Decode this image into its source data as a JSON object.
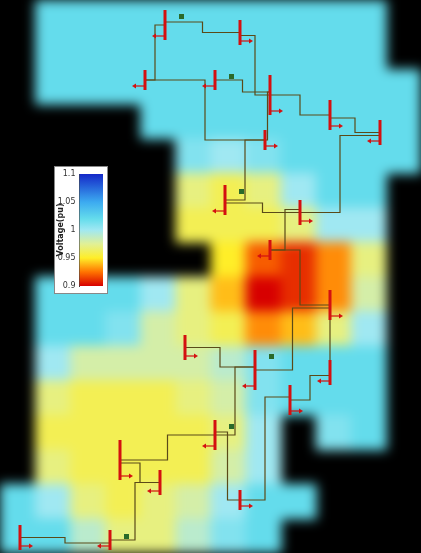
{
  "chart_data": {
    "type": "heatmap",
    "tick_labels": false,
    "cells": [
      [
        null,
        1.02,
        1.02,
        1.02,
        1.02,
        1.02,
        1.02,
        1.02,
        1.02,
        1.02,
        1.02,
        null
      ],
      [
        null,
        1.02,
        1.02,
        1.02,
        1.02,
        1.02,
        1.02,
        1.02,
        1.02,
        1.02,
        1.02,
        null
      ],
      [
        null,
        1.02,
        1.02,
        1.02,
        1.02,
        1.02,
        1.02,
        1.02,
        1.02,
        1.02,
        1.02,
        1.02
      ],
      [
        null,
        null,
        null,
        null,
        1.02,
        1.02,
        1.02,
        1.02,
        1.02,
        1.02,
        1.02,
        1.02
      ],
      [
        null,
        null,
        null,
        null,
        null,
        1.01,
        1.0,
        1.01,
        1.02,
        1.02,
        1.02,
        1.02
      ],
      [
        null,
        null,
        null,
        null,
        null,
        0.97,
        0.96,
        0.97,
        1.0,
        1.02,
        1.02,
        null
      ],
      [
        null,
        null,
        null,
        null,
        null,
        0.96,
        0.96,
        0.96,
        0.97,
        1.0,
        1.0,
        null
      ],
      [
        null,
        null,
        null,
        null,
        null,
        null,
        0.95,
        0.92,
        0.91,
        0.93,
        0.97,
        null
      ],
      [
        null,
        1.02,
        1.02,
        1.02,
        1.0,
        0.97,
        0.94,
        0.9,
        0.91,
        0.93,
        0.98,
        null
      ],
      [
        null,
        1.02,
        1.02,
        1.01,
        0.98,
        0.97,
        0.96,
        0.93,
        0.94,
        0.97,
        1.0,
        null
      ],
      [
        null,
        1.0,
        0.98,
        0.98,
        0.98,
        0.98,
        0.99,
        1.01,
        1.02,
        1.02,
        1.02,
        null
      ],
      [
        null,
        0.97,
        0.96,
        0.96,
        0.96,
        0.97,
        0.98,
        1.01,
        1.02,
        1.02,
        1.02,
        null
      ],
      [
        null,
        0.96,
        0.96,
        0.96,
        0.96,
        0.96,
        0.97,
        1.0,
        null,
        1.01,
        1.02,
        null
      ],
      [
        null,
        0.97,
        0.96,
        0.96,
        0.96,
        0.96,
        0.98,
        1.0,
        null,
        null,
        null,
        null
      ],
      [
        1.02,
        1.0,
        0.97,
        0.96,
        0.97,
        0.98,
        1.0,
        1.02,
        1.02,
        null,
        null,
        null
      ],
      [
        1.02,
        1.02,
        0.99,
        0.97,
        0.97,
        0.99,
        1.01,
        1.02,
        null,
        null,
        null,
        null
      ]
    ],
    "colorbar_title": "Voltage(pu)",
    "colorbar_range": [
      0.9,
      1.1
    ],
    "colorbar_ticks": [
      1.1,
      1.05,
      1,
      0.95,
      0.9
    ]
  }
}
